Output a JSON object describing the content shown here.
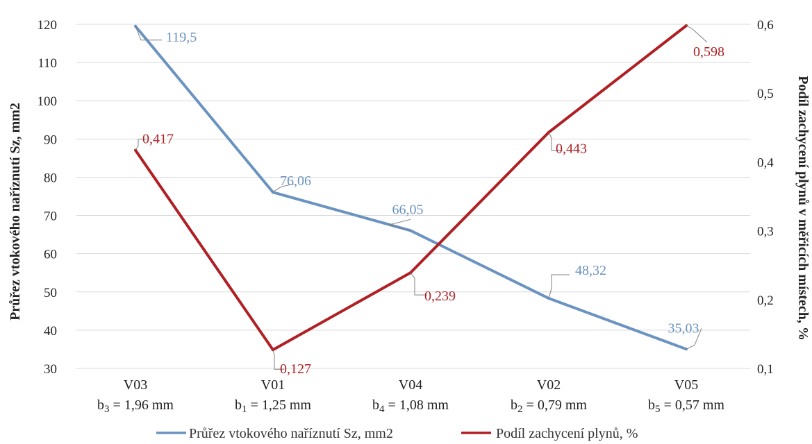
{
  "chart_data": {
    "type": "line",
    "categories": [
      "V03",
      "V01",
      "V04",
      "V02",
      "V05"
    ],
    "category_sublabels": [
      "b3 = 1,96 mm",
      "b1 = 1,25 mm",
      "b4 = 1,08 mm",
      "b2 = 0,79 mm",
      "b5 = 0,57 mm"
    ],
    "y_left": {
      "label": "Průřez vtokového naříznutí Sz, mm2",
      "ylim": [
        30,
        120
      ],
      "ticks": [
        30,
        40,
        50,
        60,
        70,
        80,
        90,
        100,
        110,
        120
      ]
    },
    "y_right": {
      "label": "Podíl zachycení plynů v měřicích místech, %",
      "ylim": [
        0.1,
        0.6
      ],
      "ticks": [
        "0,1",
        "0,2",
        "0,3",
        "0,4",
        "0,5",
        "0,6"
      ]
    },
    "series": [
      {
        "name": "Průřez vtokového naříznutí Sz, mm2",
        "axis": "left",
        "color": "#6a93c1",
        "values": [
          119.5,
          76.06,
          66.05,
          48.32,
          35.03
        ],
        "labels": [
          "119,5",
          "76,06",
          "66,05",
          "48,32",
          "35,03"
        ]
      },
      {
        "name": "Podíl zachycení plynů, %",
        "axis": "right",
        "color": "#b01f23",
        "values": [
          0.417,
          0.127,
          0.239,
          0.443,
          0.598
        ],
        "labels": [
          "0,417",
          "0,127",
          "0,239",
          "0,443",
          "0,598"
        ]
      }
    ],
    "grid": true,
    "legend_position": "bottom"
  }
}
